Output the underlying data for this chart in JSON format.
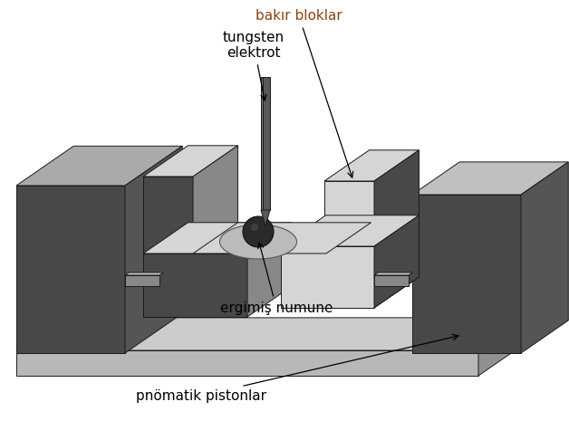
{
  "background_color": "#ffffff",
  "labels": {
    "bakir_bloklar": "bakır bloklar",
    "tungsten": "tungsten\nelektrot",
    "ergimis": "ergimiş numune",
    "pnomatik": "pnömatik pistonlar"
  },
  "label_color_bakir": "#8B4513",
  "label_color_others": "#000000",
  "colors": {
    "dark_gray": "#484848",
    "dark_gray2": "#555555",
    "mid_gray": "#888888",
    "light_gray": "#aaaaaa",
    "lighter_gray": "#c0c0c0",
    "very_light_gray": "#d5d5d5",
    "base_top": "#cccccc",
    "base_front": "#b8b8b8",
    "base_right": "#909090",
    "electrode_body": "#585858",
    "electrode_light": "#7a7a7a",
    "sphere_color": "#2a2a2a",
    "sphere_hi": "#555555",
    "disk_color": "#bbbbbb",
    "rod_color": "#7a7a7a",
    "rod_top": "#c0c0c0"
  }
}
